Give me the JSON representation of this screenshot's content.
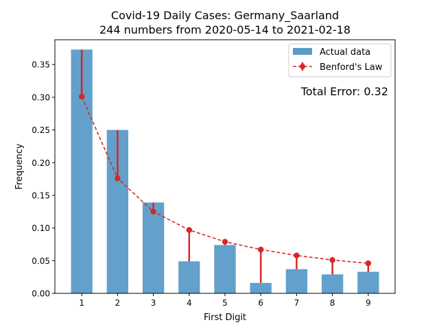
{
  "chart_data": {
    "type": "bar",
    "title": "Covid-19 Daily Cases: Germany_Saarland",
    "subtitle": "244 numbers from 2020-05-14 to 2021-02-18",
    "xlabel": "First Digit",
    "ylabel": "Frequency",
    "categories": [
      "1",
      "2",
      "3",
      "4",
      "5",
      "6",
      "7",
      "8",
      "9"
    ],
    "series": [
      {
        "name": "Actual data",
        "type": "bar",
        "color": "#5b9bc8",
        "values": [
          0.373,
          0.25,
          0.139,
          0.049,
          0.074,
          0.016,
          0.037,
          0.029,
          0.033
        ]
      },
      {
        "name": "Benford's Law",
        "type": "line",
        "color": "#d62728",
        "values": [
          0.301,
          0.176,
          0.125,
          0.097,
          0.079,
          0.067,
          0.058,
          0.051,
          0.046
        ]
      }
    ],
    "ylim": [
      0,
      0.388
    ],
    "yticks": [
      "0.00",
      "0.05",
      "0.10",
      "0.15",
      "0.20",
      "0.25",
      "0.30",
      "0.35"
    ],
    "annotation": "Total Error: 0.32",
    "annotation_color": "#d62728",
    "legend_position": "top-right",
    "grid": false
  }
}
